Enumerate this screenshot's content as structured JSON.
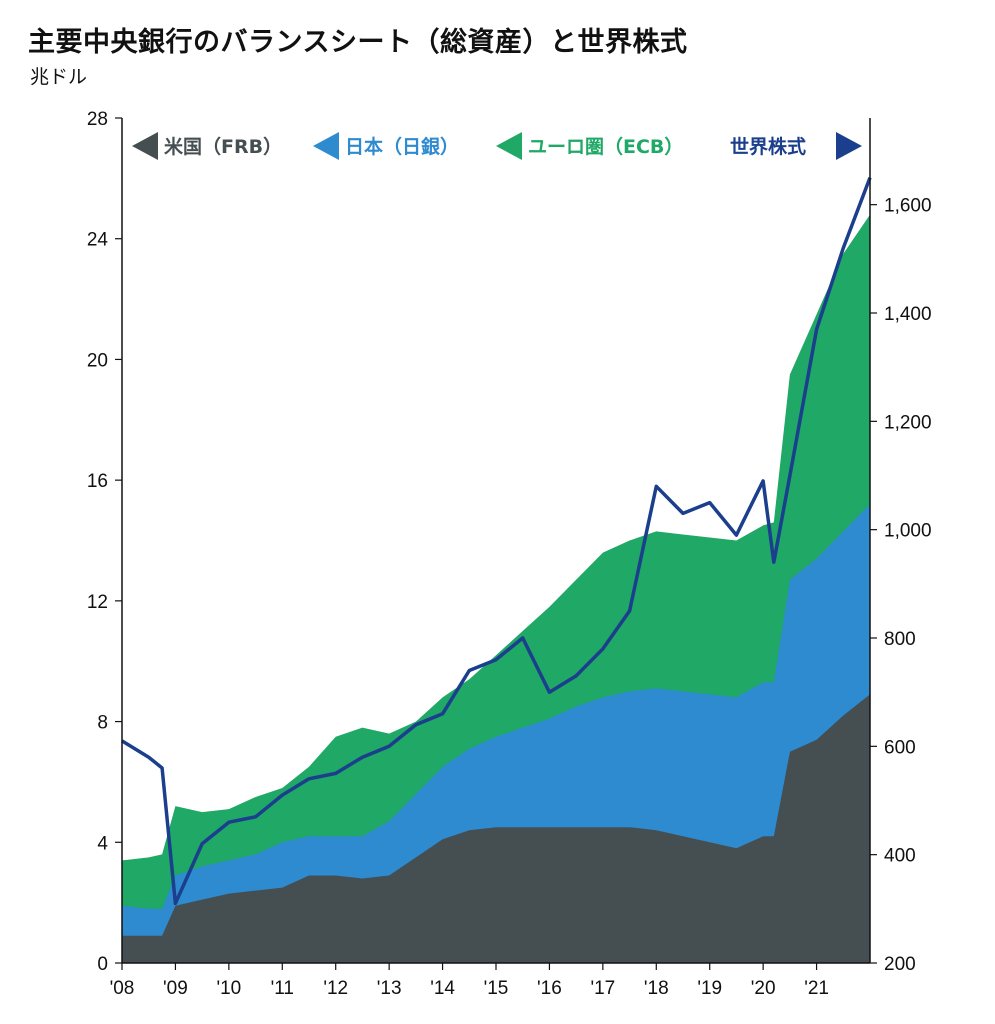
{
  "title": "主要中央銀行のバランスシート（総資産）と世界株式",
  "unit": "兆ドル",
  "chart_data": {
    "type": "area",
    "title": "主要中央銀行のバランスシート（総資産）と世界株式",
    "ylabel": "兆ドル",
    "stacked": true,
    "x_ticks": [
      "'08",
      "'09",
      "'10",
      "'11",
      "'12",
      "'13",
      "'14",
      "'15",
      "'16",
      "'17",
      "'18",
      "'19",
      "'20",
      "'21"
    ],
    "y_left_ticks": [
      "0",
      "4",
      "8",
      "12",
      "16",
      "20",
      "24",
      "28"
    ],
    "y_left_range": [
      0,
      28
    ],
    "y_right_ticks": [
      "200",
      "400",
      "600",
      "800",
      "1,000",
      "1,200",
      "1,400",
      "1,600"
    ],
    "y_right_range": [
      200,
      1760
    ],
    "x_range": [
      2008.0,
      2022.0
    ],
    "grid": false,
    "legend_position": "top",
    "legend": [
      {
        "label": "米国（FRB）",
        "arrow": "left",
        "color": "#454f52"
      },
      {
        "label": "日本（日銀）",
        "arrow": "left",
        "color": "#2e8bd0"
      },
      {
        "label": "ユーロ圏（ECB）",
        "arrow": "left",
        "color": "#1fa866"
      },
      {
        "label": "世界株式",
        "arrow": "right",
        "color": "#1b3f8c"
      }
    ],
    "colors": {
      "frb": "#454f52",
      "boj": "#2e8bd0",
      "ecb": "#1fa866",
      "equity": "#1b3f8c"
    },
    "x": [
      2008.0,
      2008.5,
      2008.75,
      2009.0,
      2009.5,
      2010.0,
      2010.5,
      2011.0,
      2011.5,
      2012.0,
      2012.5,
      2013.0,
      2013.5,
      2014.0,
      2014.5,
      2015.0,
      2015.5,
      2016.0,
      2016.5,
      2017.0,
      2017.5,
      2018.0,
      2018.5,
      2019.0,
      2019.5,
      2020.0,
      2020.2,
      2020.5,
      2021.0,
      2021.5,
      2022.0
    ],
    "series": [
      {
        "name": "米国（FRB）",
        "axis": "left",
        "values": [
          0.9,
          0.9,
          0.9,
          1.9,
          2.1,
          2.3,
          2.4,
          2.5,
          2.9,
          2.9,
          2.8,
          2.9,
          3.5,
          4.1,
          4.4,
          4.5,
          4.5,
          4.5,
          4.5,
          4.5,
          4.5,
          4.4,
          4.2,
          4.0,
          3.8,
          4.2,
          4.2,
          7.0,
          7.4,
          8.2,
          8.9
        ]
      },
      {
        "name": "日本（日銀）",
        "axis": "left",
        "values": [
          1.9,
          1.8,
          1.8,
          2.9,
          3.2,
          3.4,
          3.6,
          4.0,
          4.2,
          4.2,
          4.2,
          4.7,
          5.6,
          6.5,
          7.1,
          7.5,
          7.8,
          8.1,
          8.5,
          8.8,
          9.0,
          9.1,
          9.0,
          8.9,
          8.8,
          9.3,
          9.3,
          12.7,
          13.4,
          14.3,
          15.2
        ]
      },
      {
        "name": "ユーロ圏（ECB）",
        "axis": "left",
        "values": [
          3.4,
          3.5,
          3.6,
          5.2,
          5.0,
          5.1,
          5.5,
          5.8,
          6.5,
          7.5,
          7.8,
          7.6,
          8.0,
          8.8,
          9.4,
          10.2,
          11.0,
          11.8,
          12.7,
          13.6,
          14.0,
          14.3,
          14.2,
          14.1,
          14.0,
          14.5,
          14.6,
          19.5,
          21.5,
          23.5,
          24.8
        ]
      },
      {
        "name": "世界株式",
        "axis": "right",
        "values": [
          610,
          580,
          560,
          310,
          420,
          460,
          470,
          510,
          540,
          550,
          580,
          600,
          640,
          660,
          740,
          760,
          800,
          700,
          730,
          780,
          850,
          1080,
          1030,
          1050,
          990,
          1090,
          940,
          1100,
          1370,
          1520,
          1650
        ]
      }
    ]
  }
}
